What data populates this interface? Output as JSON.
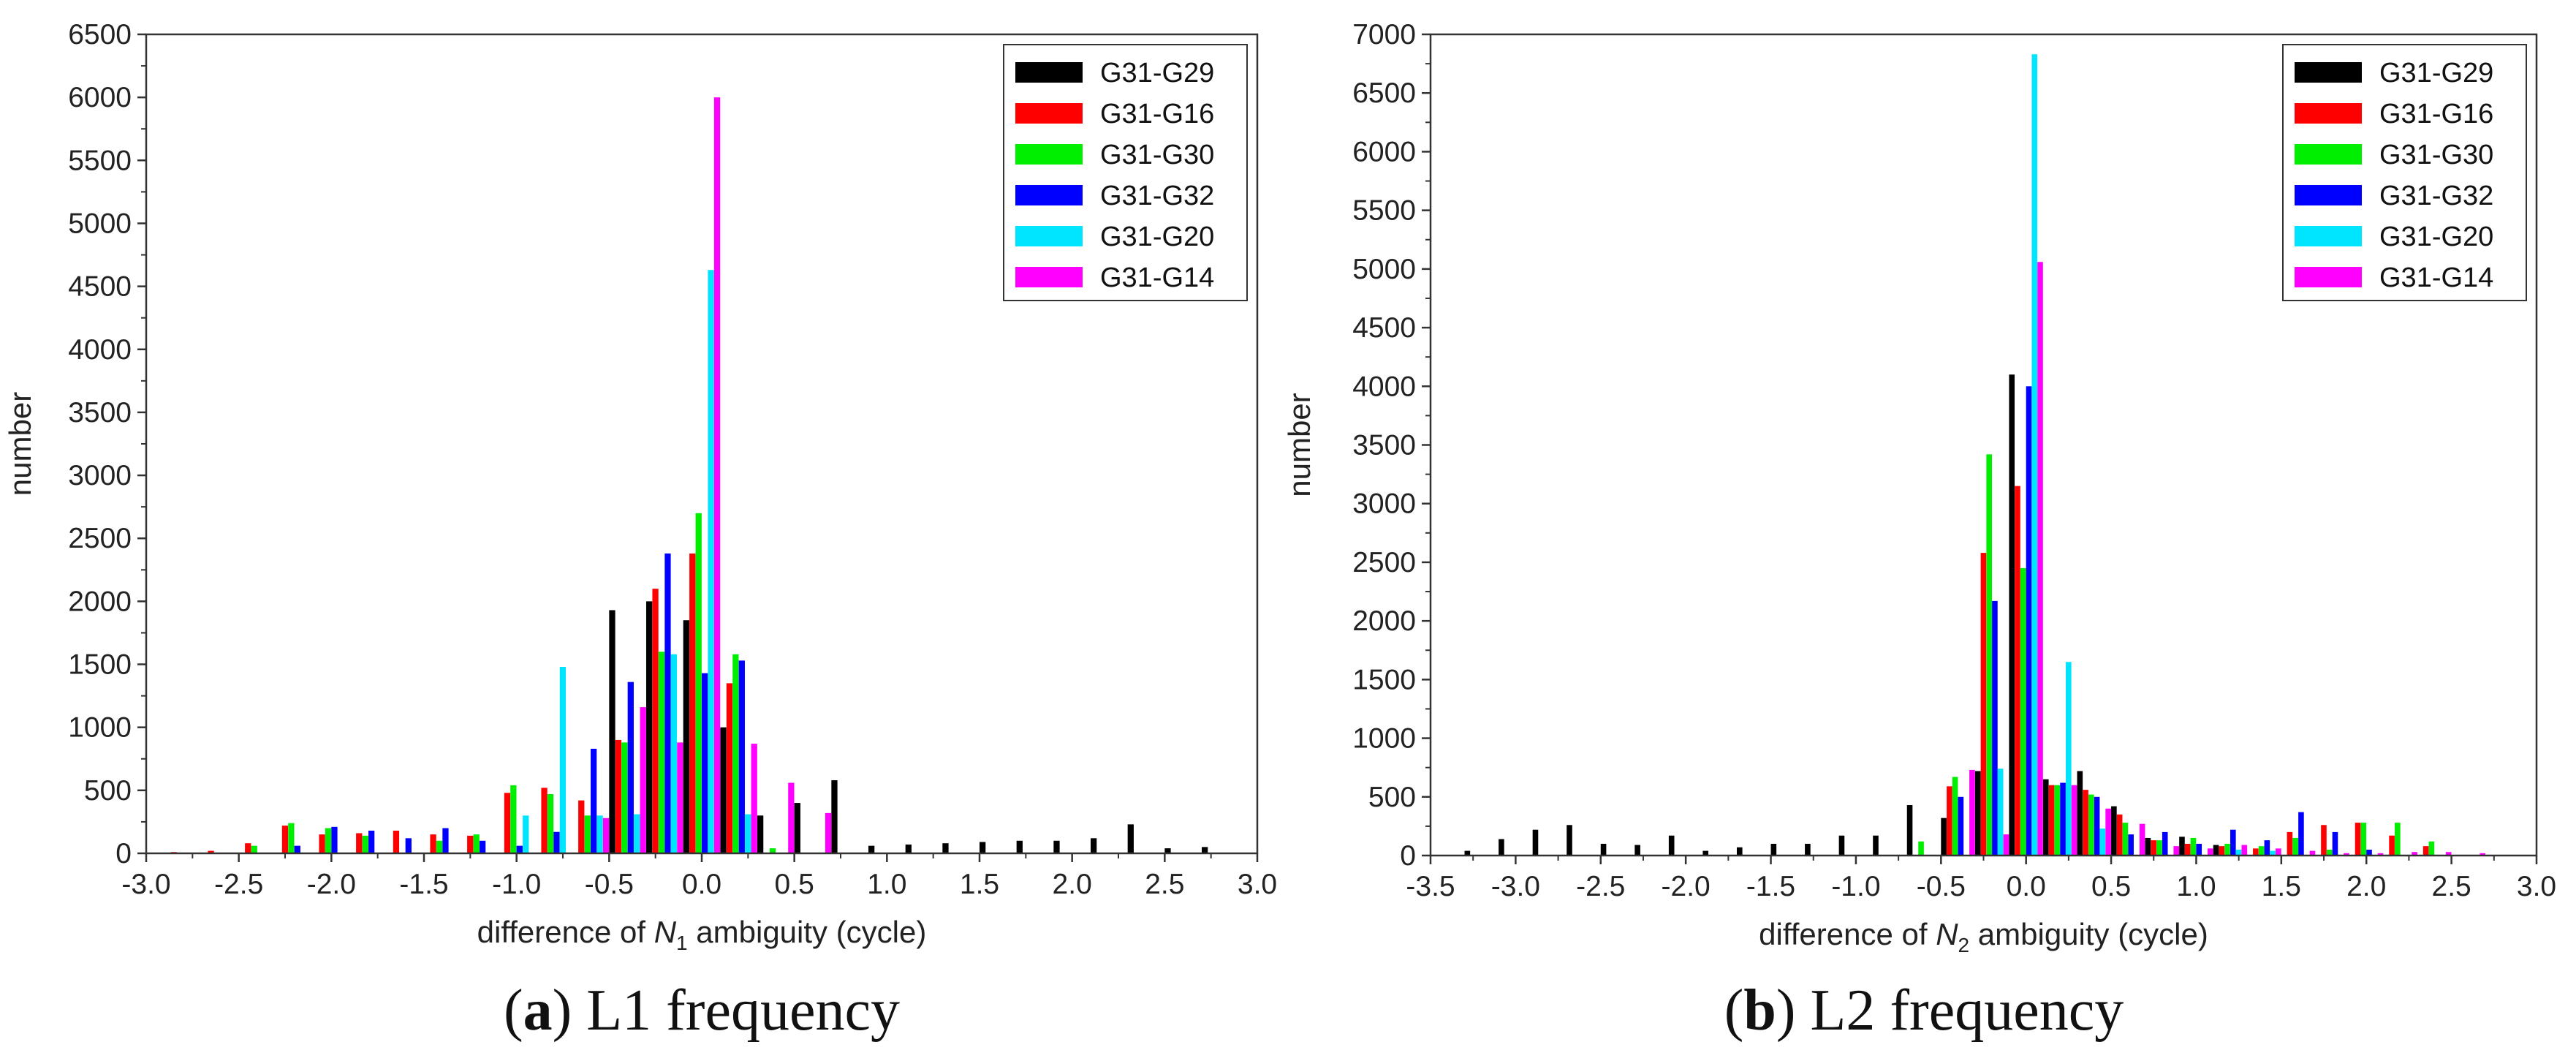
{
  "chart_data": [
    {
      "type": "bar",
      "id": "a",
      "caption_letter": "a",
      "caption_text": ") L1 frequency",
      "caption_paren": "(",
      "ylabel": "number",
      "xlabel_pre": "difference of ",
      "xlabel_var": "N",
      "xlabel_sub": "1",
      "xlabel_post": " ambiguity (cycle)",
      "xlim": [
        -3.0,
        3.0
      ],
      "ylim": [
        0,
        6500
      ],
      "xticks": [
        -3.0,
        -2.5,
        -2.0,
        -1.5,
        -1.0,
        -0.5,
        0.0,
        0.5,
        1.0,
        1.5,
        2.0,
        2.5,
        3.0
      ],
      "xtick_labels": [
        "-3.0",
        "-2.5",
        "-2.0",
        "-1.5",
        "-1.0",
        "-0.5",
        "0.0",
        "0.5",
        "1.0",
        "1.5",
        "2.0",
        "2.5",
        "3.0"
      ],
      "yticks": [
        0,
        500,
        1000,
        1500,
        2000,
        2500,
        3000,
        3500,
        4000,
        4500,
        5000,
        5500,
        6000,
        6500
      ],
      "ytick_labels": [
        "0",
        "500",
        "1000",
        "1500",
        "2000",
        "2500",
        "3000",
        "3500",
        "4000",
        "4500",
        "5000",
        "5500",
        "6000",
        "6500"
      ],
      "bin_width": 0.2,
      "legend_position": "top-right",
      "series": [
        {
          "name": "G31-G29",
          "color": "#000000",
          "x": [
            -0.4,
            -0.2,
            0.0,
            0.2,
            0.4,
            0.6,
            0.8,
            1.0,
            1.2,
            1.4,
            1.6,
            1.8,
            2.0,
            2.2,
            2.4,
            2.6,
            2.8
          ],
          "values": [
            1930,
            2000,
            1850,
            1000,
            300,
            400,
            580,
            60,
            70,
            80,
            90,
            100,
            100,
            120,
            230,
            40,
            50
          ]
        },
        {
          "name": "G31-G16",
          "color": "#ff0000",
          "x": [
            -2.8,
            -2.6,
            -2.4,
            -2.2,
            -2.0,
            -1.8,
            -1.6,
            -1.4,
            -1.2,
            -1.0,
            -0.8,
            -0.6,
            -0.4,
            -0.2,
            0.0,
            0.2
          ],
          "values": [
            10,
            20,
            80,
            220,
            150,
            160,
            180,
            150,
            140,
            480,
            520,
            420,
            900,
            2100,
            2380,
            1350
          ]
        },
        {
          "name": "G31-G30",
          "color": "#00ee00",
          "x": [
            -2.4,
            -2.2,
            -2.0,
            -1.8,
            -1.4,
            -1.2,
            -1.0,
            -0.8,
            -0.6,
            -0.4,
            -0.2,
            0.0,
            0.2,
            0.4
          ],
          "values": [
            60,
            240,
            200,
            140,
            100,
            150,
            540,
            470,
            300,
            880,
            1600,
            2700,
            1580,
            40
          ]
        },
        {
          "name": "G31-G32",
          "color": "#0000ff",
          "x": [
            -2.2,
            -2.0,
            -1.8,
            -1.6,
            -1.4,
            -1.2,
            -1.0,
            -0.8,
            -0.6,
            -0.4,
            -0.2,
            0.0,
            0.2
          ],
          "values": [
            60,
            210,
            180,
            120,
            200,
            100,
            60,
            170,
            830,
            1360,
            2380,
            1430,
            1530
          ]
        },
        {
          "name": "G31-G20",
          "color": "#00e5ff",
          "x": [
            -1.0,
            -0.8,
            -0.6,
            -0.4,
            -0.2,
            0.0,
            0.2
          ],
          "values": [
            300,
            1480,
            300,
            310,
            1580,
            4630,
            310
          ]
        },
        {
          "name": "G31-G14",
          "color": "#ff00ff",
          "x": [
            -0.6,
            -0.4,
            -0.2,
            0.0,
            0.2,
            0.4,
            0.6
          ],
          "values": [
            280,
            1160,
            880,
            6000,
            870,
            560,
            320
          ]
        }
      ]
    },
    {
      "type": "bar",
      "id": "b",
      "caption_letter": "b",
      "caption_text": ") L2 frequency",
      "caption_paren": "(",
      "ylabel": "number",
      "xlabel_pre": "difference of ",
      "xlabel_var": "N",
      "xlabel_sub": "2",
      "xlabel_post": " ambiguity (cycle)",
      "xlim": [
        -3.5,
        3.0
      ],
      "ylim": [
        0,
        7000
      ],
      "xticks": [
        -3.5,
        -3.0,
        -2.5,
        -2.0,
        -1.5,
        -1.0,
        -0.5,
        0.0,
        0.5,
        1.0,
        1.5,
        2.0,
        2.5,
        3.0
      ],
      "xtick_labels": [
        "-3.5",
        "-3.0",
        "-2.5",
        "-2.0",
        "-1.5",
        "-1.0",
        "-0.5",
        "0.0",
        "0.5",
        "1.0",
        "1.5",
        "2.0",
        "2.5",
        "3.0"
      ],
      "yticks": [
        0,
        500,
        1000,
        1500,
        2000,
        2500,
        3000,
        3500,
        4000,
        4500,
        5000,
        5500,
        6000,
        6500,
        7000
      ],
      "ytick_labels": [
        "0",
        "500",
        "1000",
        "1500",
        "2000",
        "2500",
        "3000",
        "3500",
        "4000",
        "4500",
        "5000",
        "5500",
        "6000",
        "6500",
        "7000"
      ],
      "bin_width": 0.2,
      "legend_position": "top-right",
      "series": [
        {
          "name": "G31-G29",
          "color": "#000000",
          "x": [
            -3.2,
            -3.0,
            -2.8,
            -2.6,
            -2.4,
            -2.2,
            -2.0,
            -1.8,
            -1.6,
            -1.4,
            -1.2,
            -1.0,
            -0.8,
            -0.6,
            -0.4,
            -0.2,
            0.0,
            0.2,
            0.4,
            0.6,
            0.8,
            1.0,
            1.2
          ],
          "values": [
            40,
            140,
            220,
            260,
            100,
            90,
            170,
            40,
            70,
            100,
            100,
            170,
            170,
            430,
            320,
            720,
            4100,
            650,
            720,
            420,
            150,
            160,
            90
          ]
        },
        {
          "name": "G31-G16",
          "color": "#ff0000",
          "x": [
            -0.4,
            -0.2,
            0.0,
            0.2,
            0.4,
            0.6,
            0.8,
            1.0,
            1.2,
            1.4,
            1.6,
            1.8,
            2.0,
            2.2,
            2.4
          ],
          "values": [
            590,
            2580,
            3150,
            600,
            560,
            350,
            130,
            100,
            80,
            60,
            200,
            260,
            280,
            170,
            80
          ]
        },
        {
          "name": "G31-G30",
          "color": "#00ee00",
          "x": [
            -0.6,
            -0.4,
            -0.2,
            0.0,
            0.2,
            0.4,
            0.6,
            0.8,
            1.0,
            1.2,
            1.4,
            1.6,
            1.8,
            2.0,
            2.2,
            2.4
          ],
          "values": [
            120,
            670,
            3420,
            2450,
            600,
            520,
            280,
            130,
            150,
            100,
            80,
            150,
            50,
            280,
            280,
            120
          ]
        },
        {
          "name": "G31-G32",
          "color": "#0000ff",
          "x": [
            -0.4,
            -0.2,
            0.0,
            0.2,
            0.4,
            0.6,
            0.8,
            1.0,
            1.2,
            1.4,
            1.6,
            1.8,
            2.0
          ],
          "values": [
            500,
            2170,
            4000,
            620,
            500,
            180,
            200,
            100,
            220,
            130,
            370,
            200,
            50
          ]
        },
        {
          "name": "G31-G20",
          "color": "#00e5ff",
          "x": [
            -0.2,
            0.0,
            0.2,
            0.4,
            1.2,
            1.4
          ],
          "values": [
            740,
            6830,
            1650,
            230,
            50,
            40
          ]
        },
        {
          "name": "G31-G14",
          "color": "#ff00ff",
          "x": [
            -0.4,
            -0.2,
            0.0,
            0.2,
            0.4,
            0.6,
            0.8,
            1.0,
            1.2,
            1.4,
            1.6,
            1.8,
            2.0,
            2.2,
            2.4,
            2.6
          ],
          "values": [
            730,
            180,
            5060,
            600,
            400,
            270,
            80,
            60,
            90,
            60,
            40,
            20,
            20,
            30,
            30,
            20
          ]
        }
      ]
    }
  ]
}
